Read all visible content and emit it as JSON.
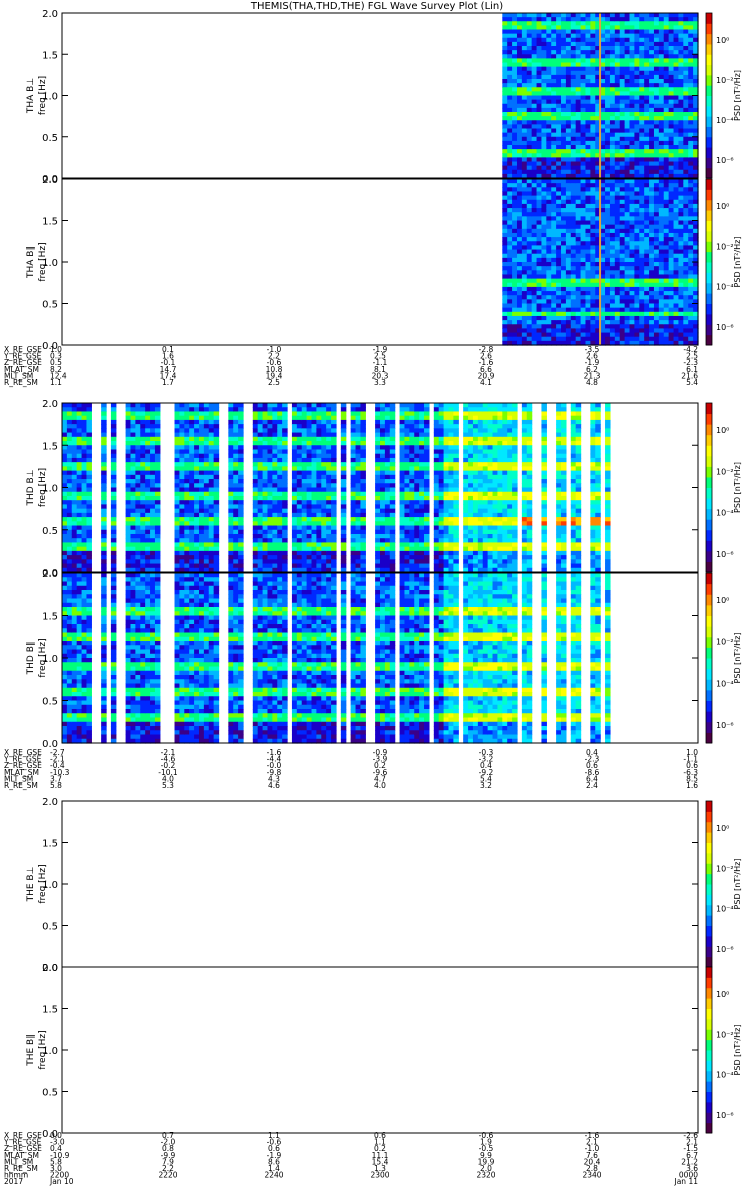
{
  "title": "THEMIS(THA,THD,THE) FGL Wave Survey Plot (Lin)",
  "colors": {
    "colormap": [
      "#4a0040",
      "#3a0088",
      "#1a00c8",
      "#0028ff",
      "#0070ff",
      "#00b8ff",
      "#00e8ff",
      "#00ffc8",
      "#00ff7a",
      "#7aff00",
      "#d8ff00",
      "#ffff00",
      "#ffcc00",
      "#ff8800",
      "#ff3c00",
      "#c80000"
    ]
  },
  "panels": [
    {
      "id": "tha-bl",
      "ylabel1": "THA B⊥",
      "ylabel2": "freq [Hz]",
      "cbar_label": "PSD [nT²/Hz]",
      "cbar_ticks": [
        "10⁰",
        "10⁻²",
        "10⁻⁴",
        "10⁻⁶"
      ],
      "yticks": [
        "2.0",
        "1.5",
        "1.0",
        "0.5",
        "0.0"
      ]
    },
    {
      "id": "tha-bpar",
      "ylabel1": "THA B∥",
      "ylabel2": "freq [Hz]",
      "cbar_label": "PSD [nT²/Hz]",
      "cbar_ticks": [
        "10⁰",
        "10⁻²",
        "10⁻⁴",
        "10⁻⁶"
      ],
      "yticks": [
        "2.0",
        "1.5",
        "1.0",
        "0.5",
        "0.0"
      ]
    },
    {
      "id": "thd-bl",
      "ylabel1": "THD B⊥",
      "ylabel2": "freq [Hz]",
      "cbar_label": "PSD [nT²/Hz]",
      "cbar_ticks": [
        "10⁰",
        "10⁻²",
        "10⁻⁴",
        "10⁻⁶"
      ],
      "yticks": [
        "2.0",
        "1.5",
        "1.0",
        "0.5",
        "0.0"
      ]
    },
    {
      "id": "thd-bpar",
      "ylabel1": "THD B∥",
      "ylabel2": "freq [Hz]",
      "cbar_label": "PSD [nT²/Hz]",
      "cbar_ticks": [
        "10⁰",
        "10⁻²",
        "10⁻⁴",
        "10⁻⁶"
      ],
      "yticks": [
        "2.0",
        "1.5",
        "1.0",
        "0.5",
        "0.0"
      ]
    },
    {
      "id": "the-bl",
      "ylabel1": "THE B⊥",
      "ylabel2": "freq [Hz]",
      "cbar_label": "PSD [nT²/Hz]",
      "cbar_ticks": [
        "10⁰",
        "10⁻²",
        "10⁻⁴",
        "10⁻⁶"
      ],
      "yticks": [
        "2.0",
        "1.5",
        "1.0",
        "0.5",
        "0.0"
      ]
    },
    {
      "id": "the-bpar",
      "ylabel1": "THE B∥",
      "ylabel2": "freq [Hz]",
      "cbar_label": "PSD [nT²/Hz]",
      "cbar_ticks": [
        "10⁰",
        "10⁻²",
        "10⁻⁴",
        "10⁻⁶"
      ],
      "yticks": [
        "2.0",
        "1.5",
        "1.0",
        "0.5",
        "0.0"
      ]
    }
  ],
  "annotation_blocks": [
    {
      "rows": [
        {
          "label": "X_RE_GSE",
          "values": [
            "1.0",
            "0.1",
            "-1.0",
            "-1.9",
            "-2.8",
            "-3.5",
            "-4.2"
          ]
        },
        {
          "label": "Y_RE_GSE",
          "values": [
            "0.3",
            "1.6",
            "2.2",
            "2.5",
            "2.6",
            "2.6",
            "2.5"
          ]
        },
        {
          "label": "Z_RE_GSE",
          "values": [
            "0.5",
            "-0.1",
            "-0.6",
            "-1.1",
            "-1.6",
            "-1.9",
            "-2.3"
          ]
        },
        {
          "label": "MLAT_SM",
          "values": [
            "8.2",
            "14.7",
            "10.8",
            "8.1",
            "6.6",
            "6.2",
            "6.1"
          ]
        },
        {
          "label": "MLT_SM",
          "values": [
            "12.4",
            "17.4",
            "19.4",
            "20.3",
            "20.9",
            "21.3",
            "21.6"
          ]
        },
        {
          "label": "R_RE_SM",
          "values": [
            "1.1",
            "1.7",
            "2.5",
            "3.3",
            "4.1",
            "4.8",
            "5.4"
          ]
        }
      ]
    },
    {
      "rows": [
        {
          "label": "X_RE_GSE",
          "values": [
            "-2.7",
            "-2.1",
            "-1.6",
            "-0.9",
            "-0.3",
            "0.4",
            "1.0"
          ]
        },
        {
          "label": "Y_RE_GSE",
          "values": [
            "-2.1",
            "-4.6",
            "-4.4",
            "-3.9",
            "-3.2",
            "-2.3",
            "-1.1"
          ]
        },
        {
          "label": "Z_RE_GSE",
          "values": [
            "-0.4",
            "-0.2",
            "-0.0",
            "0.2",
            "0.4",
            "0.6",
            "0.6"
          ]
        },
        {
          "label": "MLAT_SM",
          "values": [
            "-10.3",
            "-10.1",
            "-9.8",
            "-9.6",
            "-9.2",
            "-8.6",
            "-6.3"
          ]
        },
        {
          "label": "MLT_SM",
          "values": [
            "3.7",
            "4.0",
            "4.3",
            "4.7",
            "5.4",
            "6.4",
            "8.5"
          ]
        },
        {
          "label": "R_RE_SM",
          "values": [
            "5.8",
            "5.3",
            "4.6",
            "4.0",
            "3.2",
            "2.4",
            "1.6"
          ]
        }
      ]
    },
    {
      "rows": [
        {
          "label": "X_RE_GSE",
          "values": [
            "0.0",
            "0.7",
            "1.1",
            "0.6",
            "-0.6",
            "-1.6",
            "-2.6"
          ]
        },
        {
          "label": "Y_RE_GSE",
          "values": [
            "-3.0",
            "-2.0",
            "-0.6",
            "1.1",
            "1.9",
            "2.1",
            "2.1"
          ]
        },
        {
          "label": "Z_RE_GSE",
          "values": [
            "0.4",
            "0.8",
            "0.6",
            "0.2",
            "-0.5",
            "-1.0",
            "-1.5"
          ]
        },
        {
          "label": "MLAT_SM",
          "values": [
            "-10.9",
            "-9.9",
            "-1.9",
            "11.1",
            "9.9",
            "7.6",
            "6.7"
          ]
        },
        {
          "label": "MLT_SM",
          "values": [
            "5.8",
            "7.9",
            "8.6",
            "15.4",
            "19.9",
            "20.4",
            "21.2"
          ]
        },
        {
          "label": "R_RE_SM",
          "values": [
            "3.0",
            "2.2",
            "1.4",
            "1.3",
            "2.0",
            "2.8",
            "3.6"
          ]
        },
        {
          "label": "hhmm",
          "values": [
            "2200",
            "2220",
            "2240",
            "2300",
            "2320",
            "2340",
            "0000"
          ]
        },
        {
          "label": "2017",
          "values": [
            "Jan 10",
            "",
            "",
            "",
            "",
            "",
            "Jan 11"
          ]
        }
      ]
    }
  ],
  "chart_data": [
    {
      "type": "heatmap",
      "panel": "THA B⊥",
      "ylabel": "freq [Hz]",
      "ylim": [
        0,
        2
      ],
      "colorbar": "PSD [nT²/Hz]",
      "data_x_range_fraction": [
        0.69,
        1.0
      ],
      "bright_bands_hz": [
        0.3,
        0.75,
        1.05,
        1.4,
        1.85
      ],
      "vertical_line_fraction": 0.846
    },
    {
      "type": "heatmap",
      "panel": "THA B∥",
      "ylabel": "freq [Hz]",
      "ylim": [
        0,
        2
      ],
      "colorbar": "PSD [nT²/Hz]",
      "data_x_range_fraction": [
        0.69,
        1.0
      ],
      "bright_bands_hz": [
        0.38,
        0.75
      ],
      "vertical_line_fraction": 0.846
    },
    {
      "type": "heatmap",
      "panel": "THD B⊥",
      "ylabel": "freq [Hz]",
      "ylim": [
        0,
        2
      ],
      "colorbar": "PSD [nT²/Hz]",
      "data_x_range_fraction": [
        0.0,
        0.86
      ],
      "bright_bands_hz": [
        0.3,
        0.6,
        0.9,
        1.25,
        1.55,
        1.85
      ]
    },
    {
      "type": "heatmap",
      "panel": "THD B∥",
      "ylabel": "freq [Hz]",
      "ylim": [
        0,
        2
      ],
      "colorbar": "PSD [nT²/Hz]",
      "data_x_range_fraction": [
        0.0,
        0.86
      ],
      "bright_bands_hz": [
        0.3,
        0.6,
        0.9,
        1.25,
        1.55
      ]
    },
    {
      "type": "heatmap",
      "panel": "THE B⊥",
      "ylabel": "freq [Hz]",
      "ylim": [
        0,
        2
      ],
      "colorbar": "PSD [nT²/Hz]",
      "data_x_range_fraction": []
    },
    {
      "type": "heatmap",
      "panel": "THE B∥",
      "ylabel": "freq [Hz]",
      "ylim": [
        0,
        2
      ],
      "colorbar": "PSD [nT²/Hz]",
      "data_x_range_fraction": []
    }
  ]
}
